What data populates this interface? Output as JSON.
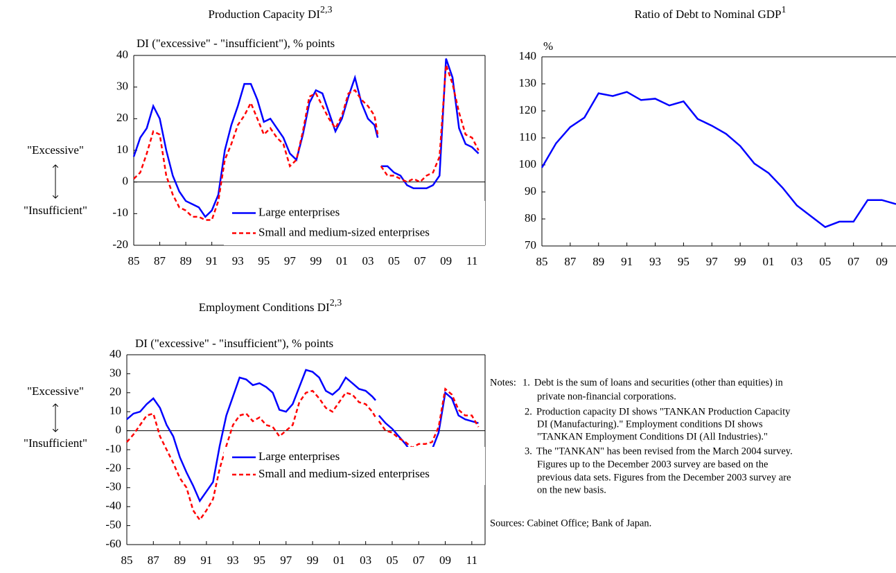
{
  "chart_data": [
    {
      "type": "line",
      "title": "Production Capacity DI",
      "title_superscript": "2,3",
      "ylabel": "DI  (\"excessive\" - \"insufficient\"), % points",
      "annotations": [
        "\"Excessive\"",
        "\"Insufficient\""
      ],
      "x": [
        1985,
        1985.5,
        1986,
        1986.5,
        1987,
        1987.5,
        1988,
        1988.5,
        1989,
        1989.5,
        1990,
        1990.5,
        1991,
        1991.5,
        1992,
        1992.5,
        1993,
        1993.5,
        1994,
        1994.5,
        1995,
        1995.5,
        1996,
        1996.5,
        1997,
        1997.5,
        1998,
        1998.5,
        1999,
        1999.5,
        2000,
        2000.5,
        2001,
        2001.5,
        2002,
        2002.5,
        2003,
        2003.5,
        2003.75,
        2003.875,
        2004,
        2004.5,
        2005,
        2005.5,
        2006,
        2006.5,
        2007,
        2007.5,
        2008,
        2008.5,
        2009,
        2009.5,
        2010,
        2010.5,
        2011,
        2011.5
      ],
      "series": [
        {
          "name": "Large enterprises",
          "color": "#0000ff",
          "line_style": "solid",
          "values": [
            8,
            14,
            17,
            24,
            20,
            10,
            2,
            -3,
            -6,
            -7,
            -8,
            -11,
            -9,
            -4,
            10,
            18,
            24,
            31,
            31,
            26,
            19,
            20,
            17,
            14,
            9,
            7,
            15,
            25,
            29,
            28,
            22,
            16,
            20,
            27,
            33,
            25,
            20,
            18,
            14,
            null,
            5,
            5,
            3,
            2,
            -1,
            -2,
            -2,
            -2,
            -1,
            2,
            39,
            33,
            17,
            12,
            11,
            9
          ]
        },
        {
          "name": "Small and medium-sized enterprises",
          "color": "#ff0000",
          "line_style": "dashed",
          "values": [
            1,
            3,
            9,
            16,
            15,
            2,
            -4,
            -8,
            -9,
            -11,
            -11,
            -12,
            -12,
            -6,
            7,
            12,
            18,
            21,
            25,
            20,
            15,
            17,
            14,
            12,
            5,
            7,
            16,
            27,
            28,
            24,
            20,
            17,
            21,
            28,
            29,
            26,
            24,
            21,
            15,
            null,
            5,
            2,
            2,
            1,
            0,
            1,
            0,
            2,
            3,
            8,
            37,
            31,
            22,
            15,
            14,
            10
          ]
        }
      ],
      "xlim": [
        1985,
        2012
      ],
      "xticks": [
        {
          "value": 1985,
          "label": "85"
        },
        {
          "value": 1987,
          "label": "87"
        },
        {
          "value": 1989,
          "label": "89"
        },
        {
          "value": 1991,
          "label": "91"
        },
        {
          "value": 1993,
          "label": "93"
        },
        {
          "value": 1995,
          "label": "95"
        },
        {
          "value": 1997,
          "label": "97"
        },
        {
          "value": 1999,
          "label": "99"
        },
        {
          "value": 2001,
          "label": "01"
        },
        {
          "value": 2003,
          "label": "03"
        },
        {
          "value": 2005,
          "label": "05"
        },
        {
          "value": 2007,
          "label": "07"
        },
        {
          "value": 2009,
          "label": "09"
        },
        {
          "value": 2011,
          "label": "11"
        }
      ],
      "ylim": [
        -20,
        40
      ],
      "yticks": [
        -20,
        -10,
        0,
        10,
        20,
        30,
        40
      ],
      "zero_line": true,
      "legend": "lower right"
    },
    {
      "type": "line",
      "title": "Ratio of Debt to Nominal GDP",
      "title_superscript": "1",
      "ylabel": "%",
      "x": [
        1985,
        1986,
        1987,
        1988,
        1989,
        1990,
        1991,
        1992,
        1993,
        1994,
        1995,
        1996,
        1997,
        1998,
        1999,
        2000,
        2001,
        2002,
        2003,
        2004,
        2005,
        2006,
        2007,
        2008,
        2009,
        2010
      ],
      "series": [
        {
          "color": "#0000ff",
          "line_style": "solid",
          "values": [
            99,
            108,
            114,
            117.5,
            126.5,
            125.5,
            127,
            124,
            124.5,
            122,
            123.5,
            117,
            114.5,
            111.5,
            107,
            100.5,
            97,
            91.5,
            85,
            81,
            77,
            79,
            79,
            87,
            87,
            85.5
          ]
        }
      ],
      "xlim": [
        1985,
        2010
      ],
      "xticks": [
        {
          "value": 1985,
          "label": "85"
        },
        {
          "value": 1987,
          "label": "87"
        },
        {
          "value": 1989,
          "label": "89"
        },
        {
          "value": 1991,
          "label": "91"
        },
        {
          "value": 1993,
          "label": "93"
        },
        {
          "value": 1995,
          "label": "95"
        },
        {
          "value": 1997,
          "label": "97"
        },
        {
          "value": 1999,
          "label": "99"
        },
        {
          "value": 2001,
          "label": "01"
        },
        {
          "value": 2003,
          "label": "03"
        },
        {
          "value": 2005,
          "label": "05"
        },
        {
          "value": 2007,
          "label": "07"
        },
        {
          "value": 2009,
          "label": "09"
        }
      ],
      "ylim": [
        70,
        140
      ],
      "yticks": [
        70,
        80,
        90,
        100,
        110,
        120,
        130,
        140
      ],
      "zero_line": false
    },
    {
      "type": "line",
      "title": "Employment Conditions DI",
      "title_superscript": "2,3",
      "ylabel": "DI (\"excessive\" - \"insufficient\"), % points",
      "annotations": [
        "\"Excessive\"",
        "\"Insufficient\""
      ],
      "x": [
        1985,
        1985.5,
        1986,
        1986.5,
        1987,
        1987.5,
        1988,
        1988.5,
        1989,
        1989.5,
        1990,
        1990.5,
        1991,
        1991.5,
        1992,
        1992.5,
        1993,
        1993.5,
        1994,
        1994.5,
        1995,
        1995.5,
        1996,
        1996.5,
        1997,
        1997.5,
        1998,
        1998.5,
        1999,
        1999.5,
        2000,
        2000.5,
        2001,
        2001.5,
        2002,
        2002.5,
        2003,
        2003.5,
        2003.75,
        2003.875,
        2004,
        2004.5,
        2005,
        2005.5,
        2006,
        2006.5,
        2007,
        2007.5,
        2008,
        2008.5,
        2009,
        2009.5,
        2010,
        2010.5,
        2011,
        2011.5
      ],
      "series": [
        {
          "name": "Large enterprises",
          "color": "#0000ff",
          "line_style": "solid",
          "values": [
            6,
            9,
            10,
            14,
            17,
            12,
            3,
            -3,
            -14,
            -22,
            -29,
            -37,
            -32,
            -27,
            -8,
            8,
            18,
            28,
            27,
            24,
            25,
            23,
            20,
            11,
            10,
            14,
            23,
            32,
            31,
            28,
            21,
            19,
            22,
            28,
            25,
            22,
            21,
            18,
            16,
            null,
            8,
            4,
            1,
            -3,
            -7,
            -12,
            -11,
            -12,
            -10,
            -1,
            20,
            17,
            8,
            6,
            5,
            4
          ]
        },
        {
          "name": "Small and medium-sized enterprises",
          "color": "#ff0000",
          "line_style": "dashed",
          "values": [
            -6,
            -2,
            3,
            8,
            9,
            -3,
            -10,
            -17,
            -25,
            -30,
            -42,
            -47,
            -42,
            -36,
            -20,
            -8,
            3,
            8,
            9,
            5,
            7,
            3,
            2,
            -3,
            0,
            3,
            15,
            20,
            21,
            17,
            12,
            10,
            15,
            20,
            19,
            15,
            14,
            10,
            7,
            null,
            5,
            0,
            -1,
            -4,
            -6,
            -9,
            -7,
            -7,
            -6,
            2,
            22,
            19,
            11,
            8,
            8,
            2
          ]
        }
      ],
      "xlim": [
        1985,
        2012
      ],
      "xticks": [
        {
          "value": 1985,
          "label": "85"
        },
        {
          "value": 1987,
          "label": "87"
        },
        {
          "value": 1989,
          "label": "89"
        },
        {
          "value": 1991,
          "label": "91"
        },
        {
          "value": 1993,
          "label": "93"
        },
        {
          "value": 1995,
          "label": "95"
        },
        {
          "value": 1997,
          "label": "97"
        },
        {
          "value": 1999,
          "label": "99"
        },
        {
          "value": 2001,
          "label": "01"
        },
        {
          "value": 2003,
          "label": "03"
        },
        {
          "value": 2005,
          "label": "05"
        },
        {
          "value": 2007,
          "label": "07"
        },
        {
          "value": 2009,
          "label": "09"
        },
        {
          "value": 2011,
          "label": "11"
        }
      ],
      "ylim": [
        -60,
        40
      ],
      "yticks": [
        -60,
        -50,
        -40,
        -30,
        -20,
        -10,
        0,
        10,
        20,
        30,
        40
      ],
      "zero_line": true,
      "legend": "lower right"
    }
  ],
  "notes": {
    "label": "Notes:",
    "items": [
      {
        "number": "1.",
        "lines": [
          "Debt is the sum of loans and securities (other than equities) in",
          "private non-financial corporations."
        ]
      },
      {
        "number": "2.",
        "lines": [
          "Production capacity DI shows \"TANKAN Production Capacity",
          "DI (Manufacturing).\" Employment conditions DI shows",
          "\"TANKAN Employment Conditions DI (All Industries).\""
        ]
      },
      {
        "number": "3.",
        "lines": [
          "The  \"TANKAN\" has been revised from the March 2004 survey.",
          "Figures up to the December 2003 survey are based on the",
          "previous data sets. Figures from the December 2003 survey are",
          "on the new basis."
        ]
      }
    ]
  },
  "sources": "Sources: Cabinet Office; Bank of Japan."
}
